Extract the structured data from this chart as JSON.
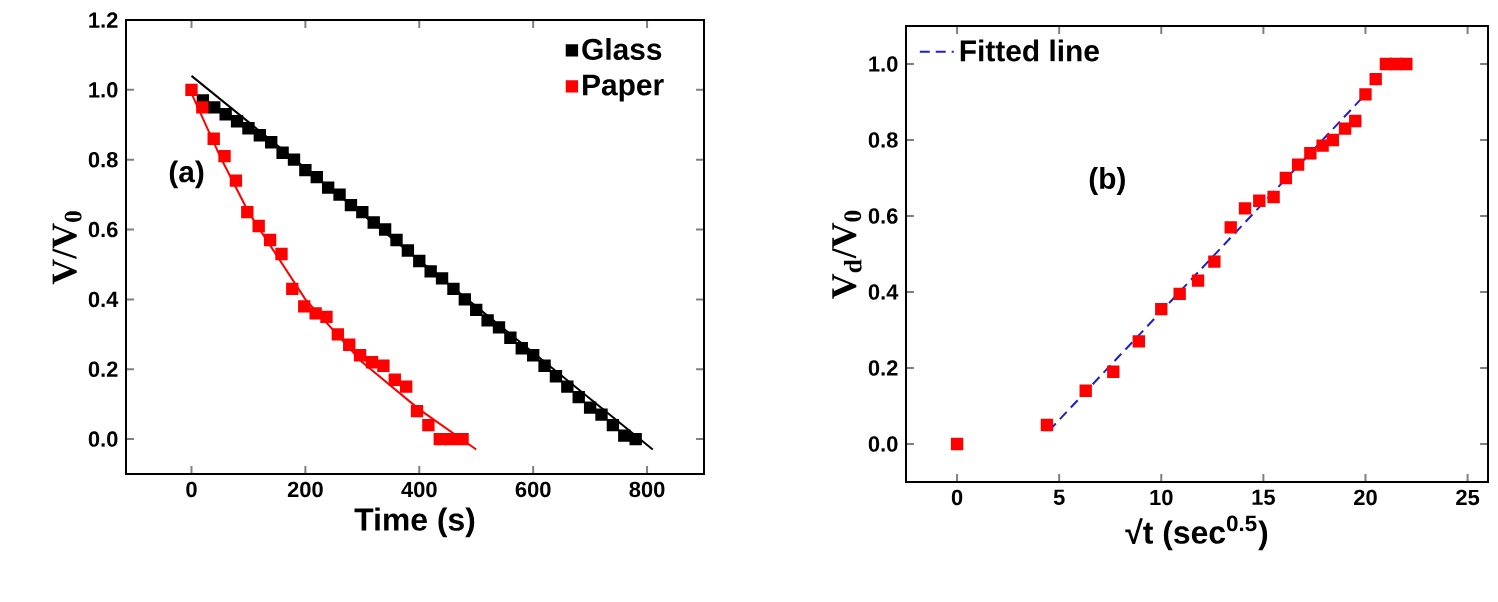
{
  "chart_data": [
    {
      "type": "scatter",
      "xlabel": "Time (s)",
      "ylabel": "V/V$_{0}$",
      "annotations": [
        "(a)"
      ],
      "xlim": [
        -115,
        900
      ],
      "ylim": [
        -0.1,
        1.2
      ],
      "xticks": [
        0,
        200,
        400,
        600,
        800
      ],
      "yticks": [
        {
          "value": 0,
          "label": "0.0"
        },
        {
          "value": 0.2,
          "label": "0.2"
        },
        {
          "value": 0.4,
          "label": "0.4"
        },
        {
          "value": 0.6,
          "label": "0.6"
        },
        {
          "value": 0.8,
          "label": "0.8"
        },
        {
          "value": 1.0,
          "label": "1.0"
        },
        {
          "value": 1.2,
          "label": "1.2"
        }
      ],
      "legend": "top right",
      "marker": "square",
      "series": [
        {
          "name": "Glass",
          "color": "#000000",
          "x": [
            20,
            40,
            60,
            80,
            100,
            120,
            140,
            160,
            180,
            200,
            220,
            240,
            260,
            280,
            300,
            320,
            340,
            360,
            380,
            400,
            420,
            440,
            460,
            480,
            500,
            520,
            540,
            560,
            580,
            600,
            620,
            640,
            660,
            680,
            700,
            720,
            740,
            760,
            780
          ],
          "values": [
            0.97,
            0.95,
            0.93,
            0.91,
            0.89,
            0.87,
            0.85,
            0.82,
            0.8,
            0.77,
            0.75,
            0.72,
            0.7,
            0.67,
            0.65,
            0.62,
            0.6,
            0.57,
            0.54,
            0.51,
            0.48,
            0.46,
            0.43,
            0.4,
            0.37,
            0.34,
            0.32,
            0.29,
            0.26,
            0.24,
            0.21,
            0.18,
            0.15,
            0.12,
            0.09,
            0.07,
            0.04,
            0.01,
            0.0
          ]
        },
        {
          "name": "Paper",
          "color": "#ff0000",
          "x": [
            0,
            19,
            39,
            58,
            78,
            98,
            118,
            138,
            158,
            177,
            198,
            218,
            237,
            257,
            277,
            296,
            317,
            337,
            357,
            377,
            396,
            416,
            436,
            456,
            476
          ],
          "values": [
            1.0,
            0.95,
            0.86,
            0.81,
            0.74,
            0.65,
            0.61,
            0.57,
            0.53,
            0.43,
            0.38,
            0.36,
            0.35,
            0.3,
            0.27,
            0.24,
            0.22,
            0.21,
            0.17,
            0.15,
            0.08,
            0.04,
            0.0,
            0.0,
            0.0
          ]
        },
        {
          "type": "line",
          "color": "#000000",
          "marker": "none",
          "line_style": "solid",
          "x": [
            0,
            810
          ],
          "values": [
            1.04,
            -0.03
          ]
        },
        {
          "type": "line",
          "color": "#ff0000",
          "marker": "none",
          "line_style": "solid",
          "x": [
            0,
            50,
            100,
            200,
            300,
            400,
            500
          ],
          "values": [
            0.99,
            0.81,
            0.65,
            0.4,
            0.22,
            0.085,
            -0.03
          ]
        }
      ]
    },
    {
      "type": "scatter",
      "xlabel": "√t (sec$^{0.5}$)",
      "ylabel": "V$_{d}$/V$_{0}$",
      "annotations": [
        "(b)"
      ],
      "xlim": [
        -2.5,
        26
      ],
      "ylim": [
        -0.1,
        1.1
      ],
      "xticks": [
        0,
        5,
        10,
        15,
        20,
        25
      ],
      "yticks": [
        {
          "value": 0,
          "label": "0.0"
        },
        {
          "value": 0.2,
          "label": "0.2"
        },
        {
          "value": 0.4,
          "label": "0.4"
        },
        {
          "value": 0.6,
          "label": "0.6"
        },
        {
          "value": 0.8,
          "label": "0.8"
        },
        {
          "value": 1.0,
          "label": "1.0"
        }
      ],
      "legend": "top left",
      "marker": "square",
      "series": [
        {
          "color": "#ff0000",
          "x": [
            0,
            4.4,
            6.3,
            7.65,
            8.9,
            10.0,
            10.9,
            11.8,
            12.6,
            13.4,
            14.1,
            14.8,
            15.5,
            16.1,
            16.7,
            17.3,
            17.9,
            18.4,
            19.0,
            19.5,
            20.0,
            20.5,
            21.0,
            21.5,
            22.0
          ],
          "values": [
            0,
            0.05,
            0.14,
            0.19,
            0.27,
            0.355,
            0.395,
            0.43,
            0.48,
            0.57,
            0.62,
            0.64,
            0.65,
            0.7,
            0.735,
            0.765,
            0.785,
            0.8,
            0.83,
            0.85,
            0.92,
            0.96,
            1.0,
            1.0,
            1.0
          ]
        },
        {
          "name": "Fitted line",
          "type": "line",
          "color": "#1f1fd0",
          "marker": "none",
          "line_style": "dashed",
          "x": [
            4.5,
            20.0
          ],
          "values": [
            0.035,
            0.92
          ]
        }
      ]
    }
  ]
}
